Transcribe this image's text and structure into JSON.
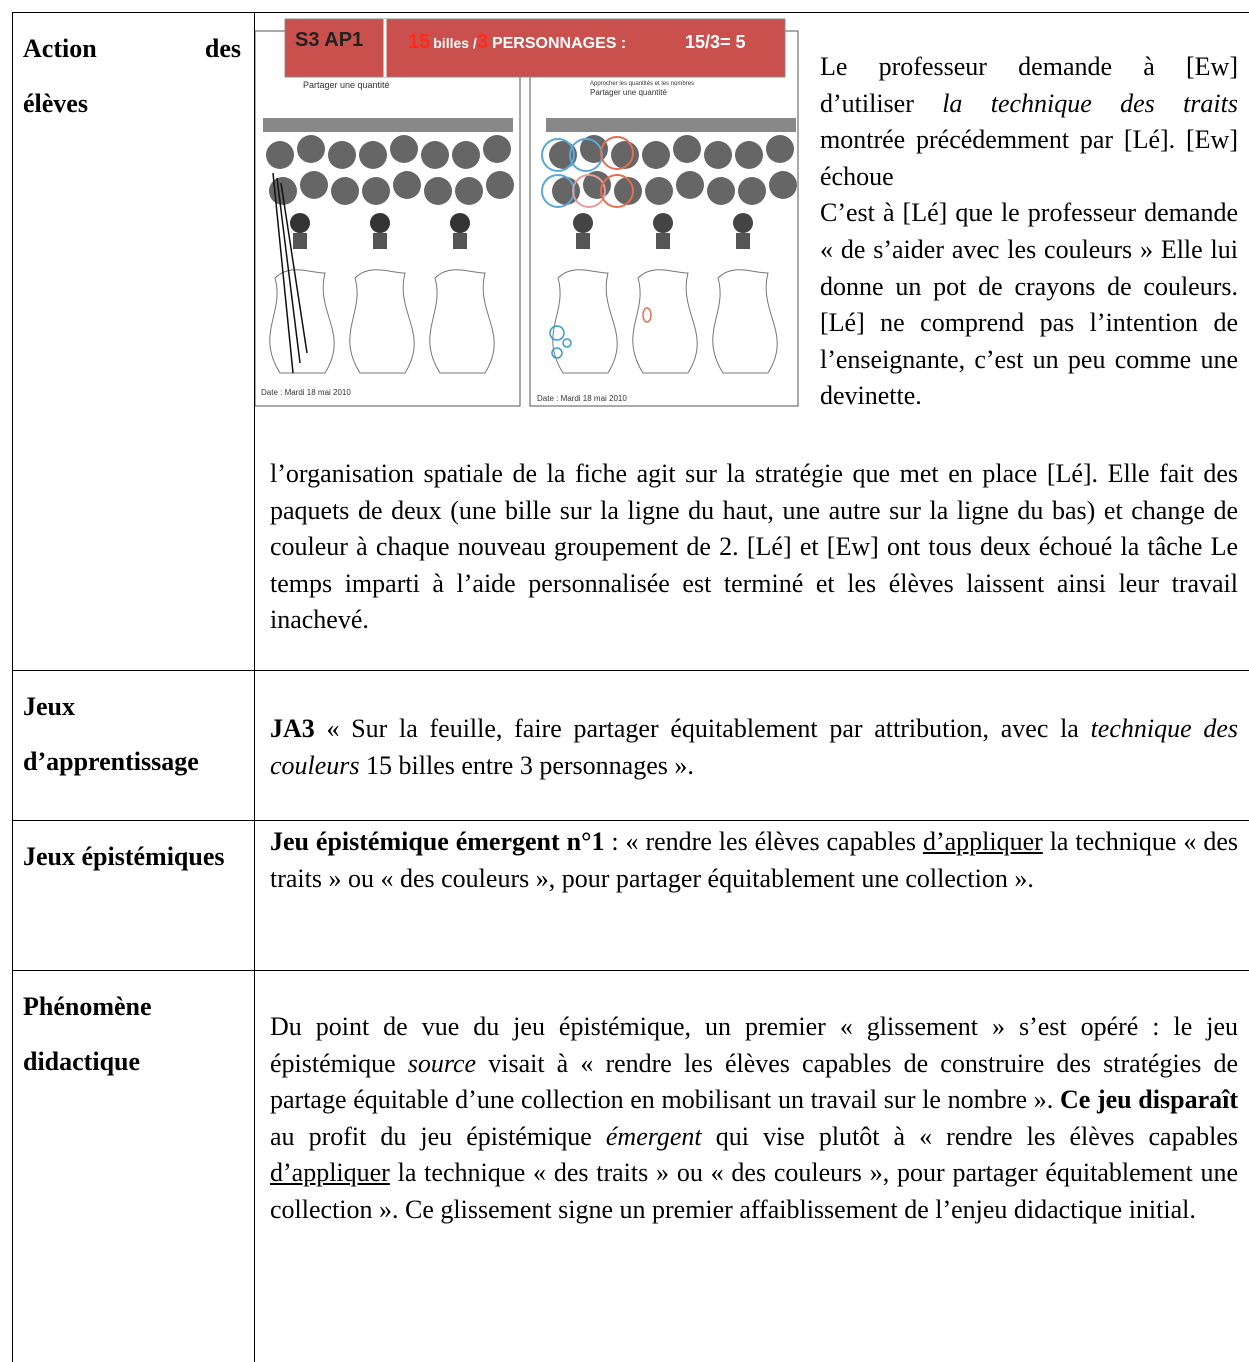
{
  "rows": [
    {
      "label": "Action des élèves",
      "figure": {
        "banner": {
          "session": "S3 AP1",
          "count": "15",
          "count_unit": "billes /",
          "divisor": "3",
          "divisor_unit": "PERSONNAGES :",
          "equation": "15/3= 5"
        },
        "sheets": [
          {
            "title": "Partager une quantité",
            "date": "Date : Mardi 18 mai 2010"
          },
          {
            "subtitle": "Approcher les quantités et les nombres",
            "title": "Partager une quantité",
            "date": "Date : Mardi 18 mai 2010"
          }
        ]
      },
      "side_paragraphs": [
        {
          "runs": [
            {
              "text": "Le professeur demande à [Ew] d’utiliser "
            },
            {
              "text": "la technique des traits",
              "style": "italic"
            },
            {
              "text": " montrée précédemment par [Lé]. [Ew] échoue"
            }
          ]
        },
        {
          "runs": [
            {
              "text": "C’est à [Lé] que le professeur demande « de s’aider avec les couleurs » Elle lui donne un pot de crayons de couleurs. [Lé] ne comprend pas l’intention de l’enseignante, c’est un peu comme une devinette."
            }
          ]
        }
      ],
      "paragraphs": [
        {
          "runs": [
            {
              "text": "l’organisation spatiale de la fiche agit sur la stratégie que met en place [Lé]. Elle fait des paquets de deux (une bille sur la ligne du haut, une autre sur la ligne du bas) et change de couleur à chaque nouveau groupement de 2. [Lé] et [Ew] ont tous deux échoué la tâche Le temps imparti à l’aide personnalisée est terminé et les élèves laissent ainsi leur travail inachevé."
            }
          ]
        }
      ]
    },
    {
      "label": "Jeux d’apprentissage",
      "paragraphs": [
        {
          "runs": [
            {
              "text": "JA3",
              "style": "bold"
            },
            {
              "text": " « Sur la feuille, faire partager équitablement par attribution, avec la "
            },
            {
              "text": "technique des couleurs",
              "style": "italic"
            },
            {
              "text": " 15 billes entre 3 personnages »."
            }
          ]
        }
      ]
    },
    {
      "label": "Jeux épistémiques",
      "paragraphs": [
        {
          "runs": [
            {
              "text": "Jeu épistémique émergent n°1",
              "style": "bold"
            },
            {
              "text": " : « rendre les élèves capables "
            },
            {
              "text": "d’appliquer",
              "style": "underline"
            },
            {
              "text": " la technique « des traits » ou « des couleurs », pour partager équitablement une collection »."
            }
          ]
        }
      ]
    },
    {
      "label": "Phénomène didactique",
      "paragraphs": [
        {
          "runs": [
            {
              "text": "Du point de vue du jeu épistémique, un premier « glissement » s’est opéré : le jeu épistémique "
            },
            {
              "text": "source",
              "style": "italic"
            },
            {
              "text": " visait à « rendre les élèves capables de construire des stratégies de partage équitable d’une collection en mobilisant un travail sur le nombre ». "
            },
            {
              "text": "Ce jeu disparaît",
              "style": "bold"
            },
            {
              "text": " au profit du jeu épistémique "
            },
            {
              "text": "émergent",
              "style": "italic"
            },
            {
              "text": " qui vise plutôt à « rendre les élèves capables "
            },
            {
              "text": "d’appliquer",
              "style": "underline"
            },
            {
              "text": " la technique « des traits » ou « des couleurs », pour partager équitablement une collection ». Ce glissement signe un premier affaiblissement de l’enjeu didactique initial."
            }
          ]
        }
      ]
    }
  ]
}
